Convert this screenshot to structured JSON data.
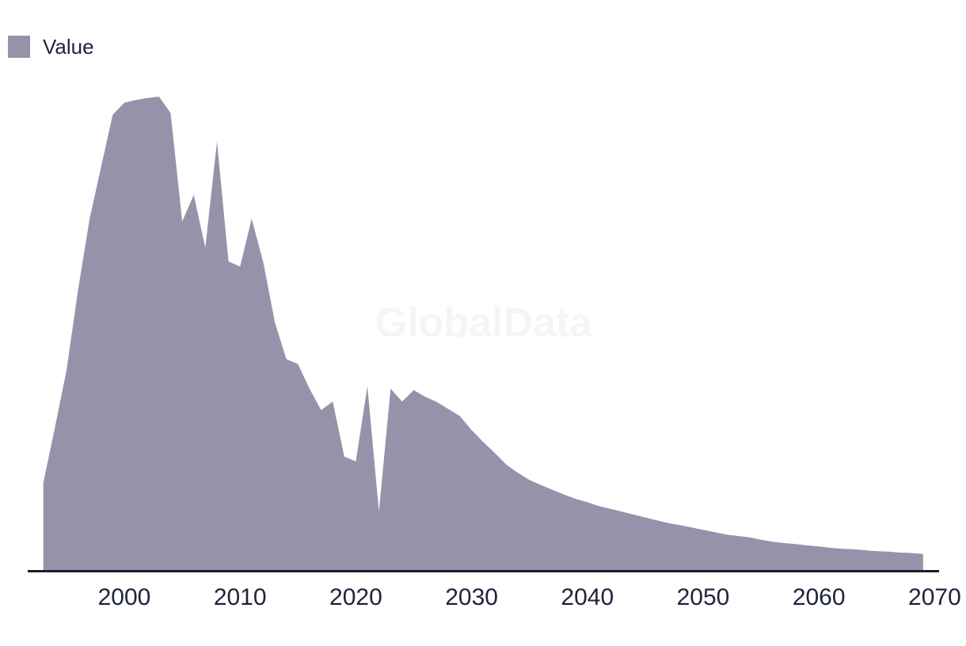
{
  "legend": {
    "items": [
      {
        "label": "Value"
      }
    ]
  },
  "watermark": {
    "text": "GlobalData"
  },
  "colors": {
    "series": "#9792a9",
    "axis": "#1c1c33",
    "text": "#20243c",
    "watermark": "#f5f5f5",
    "background": "#ffffff"
  },
  "chart_data": {
    "type": "area",
    "title": "",
    "xlabel": "",
    "ylabel": "",
    "grid": false,
    "legend_position": "top-left",
    "x_ticks": [
      2000,
      2010,
      2020,
      2030,
      2040,
      2050,
      2060,
      2070
    ],
    "x_axis_range": [
      1991.7,
      2070.4
    ],
    "y_range": [
      0,
      100
    ],
    "note": "No y-axis shown in chart; values are relative (peak year 2003 = 100).",
    "series": [
      {
        "name": "Value",
        "x": [
          1993,
          1994,
          1995,
          1996,
          1997,
          1998,
          1999,
          2000,
          2001,
          2002,
          2003,
          2004,
          2005,
          2006,
          2007,
          2008,
          2009,
          2010,
          2011,
          2012,
          2013,
          2014,
          2015,
          2016,
          2017,
          2018,
          2019,
          2020,
          2021,
          2022,
          2023,
          2024,
          2025,
          2026,
          2027,
          2028,
          2029,
          2030,
          2031,
          2032,
          2033,
          2034,
          2035,
          2036,
          2037,
          2038,
          2039,
          2040,
          2041,
          2042,
          2043,
          2044,
          2045,
          2046,
          2047,
          2048,
          2049,
          2050,
          2051,
          2052,
          2053,
          2054,
          2055,
          2056,
          2057,
          2058,
          2059,
          2060,
          2061,
          2062,
          2063,
          2064,
          2065,
          2066,
          2067,
          2068,
          2069
        ],
        "values": [
          18.7,
          30.3,
          42.3,
          59.2,
          74.2,
          85.3,
          96.2,
          98.7,
          99.3,
          99.7,
          100.0,
          96.5,
          73.7,
          79.3,
          68.2,
          90.5,
          65.3,
          64.2,
          74.3,
          65.2,
          52.5,
          44.7,
          43.7,
          38.5,
          34.0,
          35.8,
          24.2,
          23.2,
          39.0,
          12.7,
          38.5,
          35.8,
          38.2,
          36.8,
          35.7,
          34.2,
          32.7,
          29.8,
          27.3,
          25.0,
          22.5,
          20.8,
          19.3,
          18.2,
          17.2,
          16.2,
          15.3,
          14.6,
          13.8,
          13.2,
          12.6,
          12.0,
          11.4,
          10.8,
          10.2,
          9.8,
          9.3,
          8.8,
          8.3,
          7.8,
          7.5,
          7.2,
          6.7,
          6.3,
          6.0,
          5.8,
          5.5,
          5.3,
          5.0,
          4.8,
          4.7,
          4.5,
          4.3,
          4.2,
          4.0,
          3.9,
          3.7
        ]
      }
    ]
  }
}
